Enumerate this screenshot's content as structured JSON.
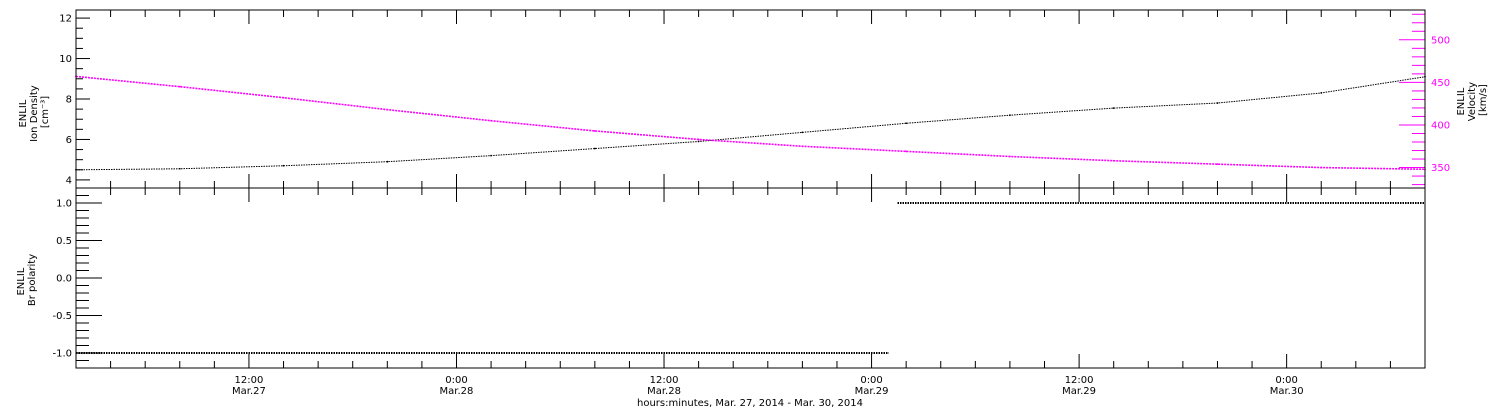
{
  "chart_data": [
    {
      "type": "line",
      "panel": "top",
      "x_range_hours": [
        0,
        78
      ],
      "left_axis": {
        "ylabel_lines": [
          "ENLIL",
          "Ion Density",
          "[cm⁻³]"
        ],
        "ylim": [
          3.6,
          12.4
        ],
        "ticks": [
          4,
          6,
          8,
          10,
          12
        ],
        "tick_labels": [
          "4",
          "6",
          "8",
          "10",
          "12"
        ]
      },
      "right_axis": {
        "ylabel_lines": [
          "ENLIL",
          "Velocity",
          "[km/s]"
        ],
        "ylim": [
          326,
          535
        ],
        "ticks": [
          350,
          400,
          450,
          500
        ],
        "tick_labels": [
          "350",
          "400",
          "450",
          "500"
        ],
        "color": "#ff00ff"
      },
      "series": [
        {
          "axis": "left",
          "color": "#000000",
          "x": [
            0,
            6,
            12,
            18,
            24,
            30,
            36,
            42,
            48,
            54,
            60,
            66,
            72,
            78
          ],
          "values": [
            4.5,
            4.55,
            4.7,
            4.9,
            5.2,
            5.55,
            5.9,
            6.35,
            6.8,
            7.2,
            7.55,
            7.8,
            8.3,
            9.1
          ]
        },
        {
          "axis": "right",
          "color": "#ff00ff",
          "x": [
            0,
            6,
            12,
            18,
            24,
            30,
            36,
            42,
            48,
            54,
            60,
            66,
            72,
            78
          ],
          "values": [
            457,
            445,
            432,
            418,
            405,
            393,
            383,
            375,
            369,
            363,
            358,
            354,
            350,
            348
          ]
        }
      ]
    },
    {
      "type": "line",
      "panel": "bottom",
      "ylabel_lines": [
        "ENLIL",
        "Br polarity"
      ],
      "ylim": [
        -1.2,
        1.2
      ],
      "ticks": [
        -1.0,
        -0.5,
        0.0,
        0.5,
        1.0
      ],
      "tick_labels": [
        "-1.0",
        "-0.5",
        "0.0",
        "0.5",
        "1.0"
      ],
      "series": [
        {
          "color": "#000000",
          "segments": [
            {
              "x": [
                0,
                47
              ],
              "values": [
                -1,
                -1
              ]
            },
            {
              "x": [
                47.5,
                78
              ],
              "values": [
                1,
                1
              ]
            }
          ]
        }
      ]
    }
  ],
  "x_axis": {
    "major_ticks": [
      {
        "x": 10,
        "time": "12:00",
        "date": "Mar.27"
      },
      {
        "x": 22,
        "time": "0:00",
        "date": "Mar.28"
      },
      {
        "x": 34,
        "time": "12:00",
        "date": "Mar.28"
      },
      {
        "x": 46,
        "time": "0:00",
        "date": "Mar.29"
      },
      {
        "x": 58,
        "time": "12:00",
        "date": "Mar.29"
      },
      {
        "x": 70,
        "time": "0:00",
        "date": "Mar.30"
      }
    ],
    "xlabel": "hours:minutes, Mar. 27, 2014 - Mar. 30, 2014"
  }
}
